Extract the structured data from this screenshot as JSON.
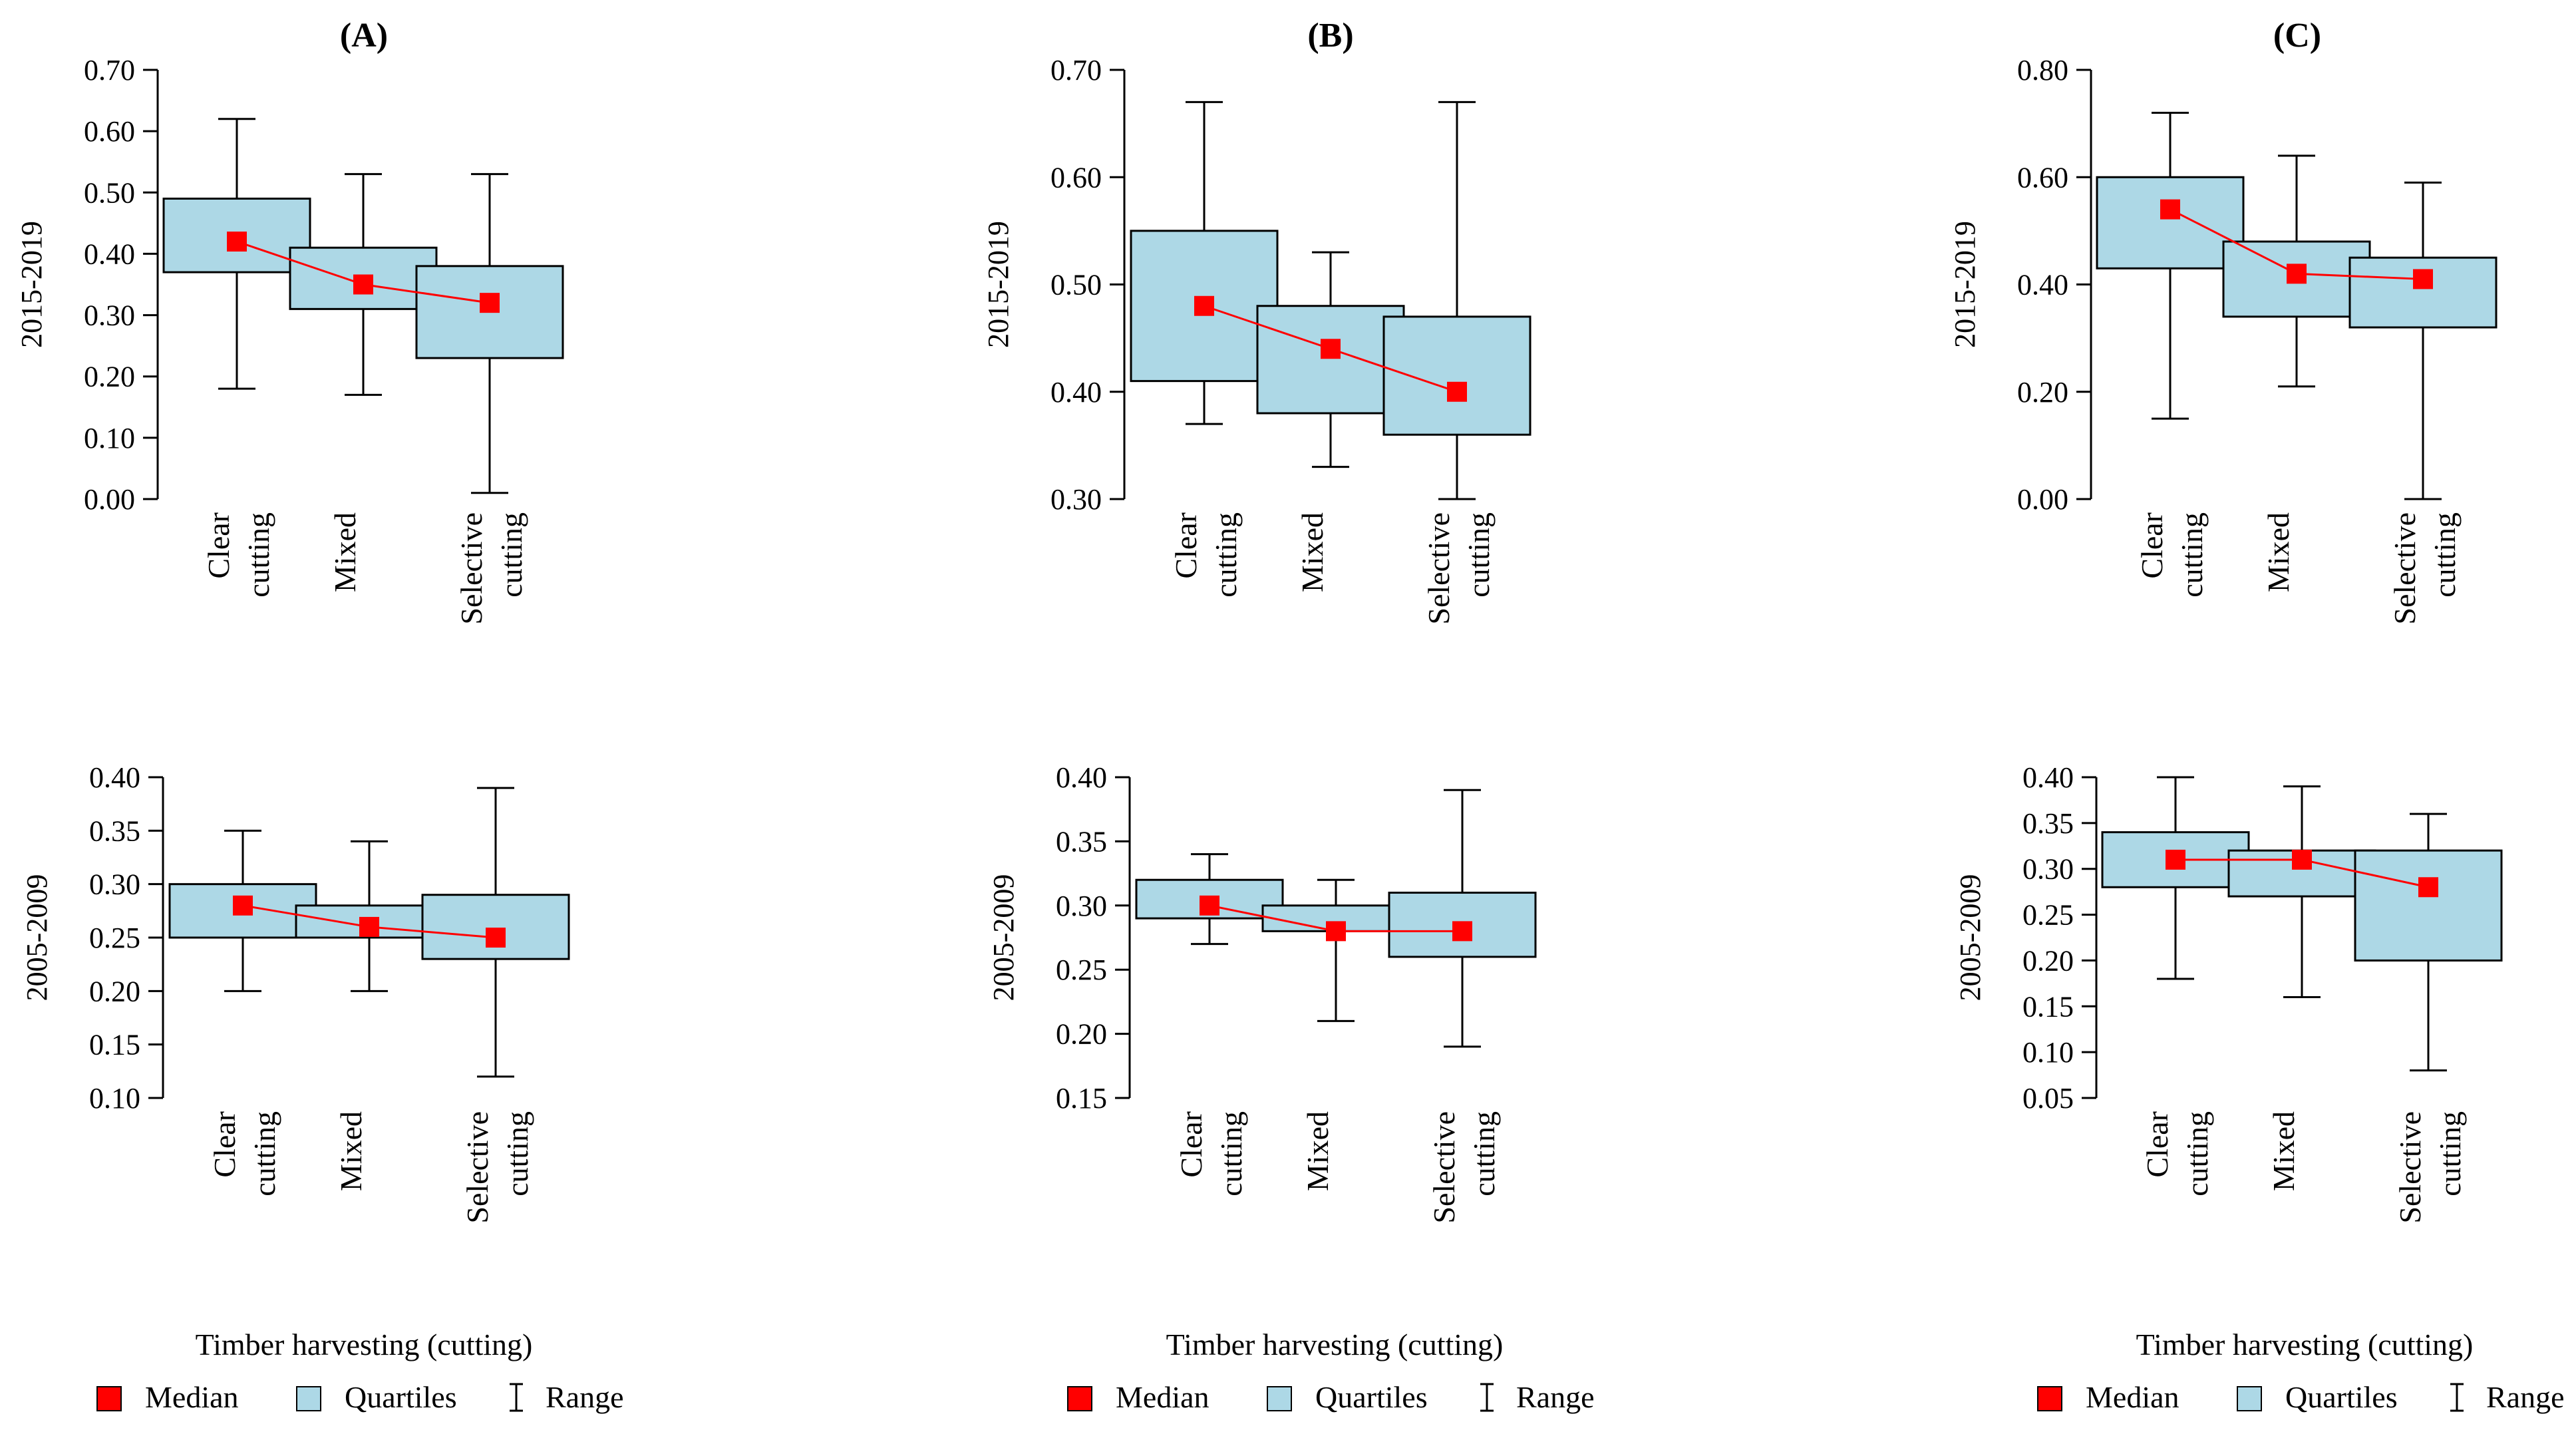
{
  "colors": {
    "box_fill": "#add8e6",
    "median": "#ff0000",
    "line": "#000000"
  },
  "legend": {
    "xlabel": "Timber harvesting (cutting)",
    "median_label": "Median",
    "quartiles_label": "Quartiles",
    "range_label": "Range"
  },
  "chart_data": [
    {
      "panel": "(A)",
      "title": "(A)",
      "type": "box",
      "ylabel": "2015-2019",
      "categories": [
        [
          "Clear",
          "cutting"
        ],
        [
          "Mixed"
        ],
        [
          "Selective",
          "cutting"
        ]
      ],
      "ylim": [
        0,
        0.7
      ],
      "ticks": [
        "0.00",
        "0.10",
        "0.20",
        "0.30",
        "0.40",
        "0.50",
        "0.60",
        "0.70"
      ],
      "boxes": [
        {
          "min": 0.18,
          "q1": 0.37,
          "median": 0.42,
          "q3": 0.49,
          "max": 0.62
        },
        {
          "min": 0.17,
          "q1": 0.31,
          "median": 0.35,
          "q3": 0.41,
          "max": 0.53
        },
        {
          "min": 0.01,
          "q1": 0.23,
          "median": 0.32,
          "q3": 0.38,
          "max": 0.53
        }
      ]
    },
    {
      "panel": "(B)",
      "title": "(B)",
      "type": "box",
      "ylabel": "2015-2019",
      "categories": [
        [
          "Clear",
          "cutting"
        ],
        [
          "Mixed"
        ],
        [
          "Selective",
          "cutting"
        ]
      ],
      "ylim": [
        0.3,
        0.7
      ],
      "ticks": [
        "0.30",
        "0.40",
        "0.50",
        "0.60",
        "0.70"
      ],
      "boxes": [
        {
          "min": 0.37,
          "q1": 0.41,
          "median": 0.48,
          "q3": 0.55,
          "max": 0.67
        },
        {
          "min": 0.33,
          "q1": 0.38,
          "median": 0.44,
          "q3": 0.48,
          "max": 0.53
        },
        {
          "min": 0.3,
          "q1": 0.36,
          "median": 0.4,
          "q3": 0.47,
          "max": 0.67
        }
      ]
    },
    {
      "panel": "(C)",
      "title": "(C)",
      "type": "box",
      "ylabel": "2015-2019",
      "categories": [
        [
          "Clear",
          "cutting"
        ],
        [
          "Mixed"
        ],
        [
          "Selective",
          "cutting"
        ]
      ],
      "ylim": [
        0,
        0.8
      ],
      "ticks": [
        "0.00",
        "0.20",
        "0.40",
        "0.60",
        "0.80"
      ],
      "boxes": [
        {
          "min": 0.15,
          "q1": 0.43,
          "median": 0.54,
          "q3": 0.6,
          "max": 0.72
        },
        {
          "min": 0.21,
          "q1": 0.34,
          "median": 0.42,
          "q3": 0.48,
          "max": 0.64
        },
        {
          "min": 0.0,
          "q1": 0.32,
          "median": 0.41,
          "q3": 0.45,
          "max": 0.59
        }
      ]
    },
    {
      "panel": "(A)",
      "title": "",
      "type": "box",
      "ylabel": "2005-2009",
      "categories": [
        [
          "Clear",
          "cutting"
        ],
        [
          "Mixed"
        ],
        [
          "Selective",
          "cutting"
        ]
      ],
      "ylim": [
        0.1,
        0.4
      ],
      "ticks": [
        "0.10",
        "0.15",
        "0.20",
        "0.25",
        "0.30",
        "0.35",
        "0.40"
      ],
      "boxes": [
        {
          "min": 0.2,
          "q1": 0.25,
          "median": 0.28,
          "q3": 0.3,
          "max": 0.35
        },
        {
          "min": 0.2,
          "q1": 0.25,
          "median": 0.26,
          "q3": 0.28,
          "max": 0.34
        },
        {
          "min": 0.12,
          "q1": 0.23,
          "median": 0.25,
          "q3": 0.29,
          "max": 0.39
        }
      ]
    },
    {
      "panel": "(B)",
      "title": "",
      "type": "box",
      "ylabel": "2005-2009",
      "categories": [
        [
          "Clear",
          "cutting"
        ],
        [
          "Mixed"
        ],
        [
          "Selective",
          "cutting"
        ]
      ],
      "ylim": [
        0.15,
        0.4
      ],
      "ticks": [
        "0.15",
        "0.20",
        "0.25",
        "0.30",
        "0.35",
        "0.40"
      ],
      "boxes": [
        {
          "min": 0.27,
          "q1": 0.29,
          "median": 0.3,
          "q3": 0.32,
          "max": 0.34
        },
        {
          "min": 0.21,
          "q1": 0.28,
          "median": 0.28,
          "q3": 0.3,
          "max": 0.32
        },
        {
          "min": 0.19,
          "q1": 0.26,
          "median": 0.28,
          "q3": 0.31,
          "max": 0.39
        }
      ]
    },
    {
      "panel": "(C)",
      "title": "",
      "type": "box",
      "ylabel": "2005-2009",
      "categories": [
        [
          "Clear",
          "cutting"
        ],
        [
          "Mixed"
        ],
        [
          "Selective",
          "cutting"
        ]
      ],
      "ylim": [
        0.05,
        0.4
      ],
      "ticks": [
        "0.05",
        "0.10",
        "0.15",
        "0.20",
        "0.25",
        "0.30",
        "0.35",
        "0.40"
      ],
      "boxes": [
        {
          "min": 0.18,
          "q1": 0.28,
          "median": 0.31,
          "q3": 0.34,
          "max": 0.4
        },
        {
          "min": 0.16,
          "q1": 0.27,
          "median": 0.31,
          "q3": 0.32,
          "max": 0.39
        },
        {
          "min": 0.08,
          "q1": 0.2,
          "median": 0.28,
          "q3": 0.32,
          "max": 0.36
        }
      ]
    }
  ]
}
